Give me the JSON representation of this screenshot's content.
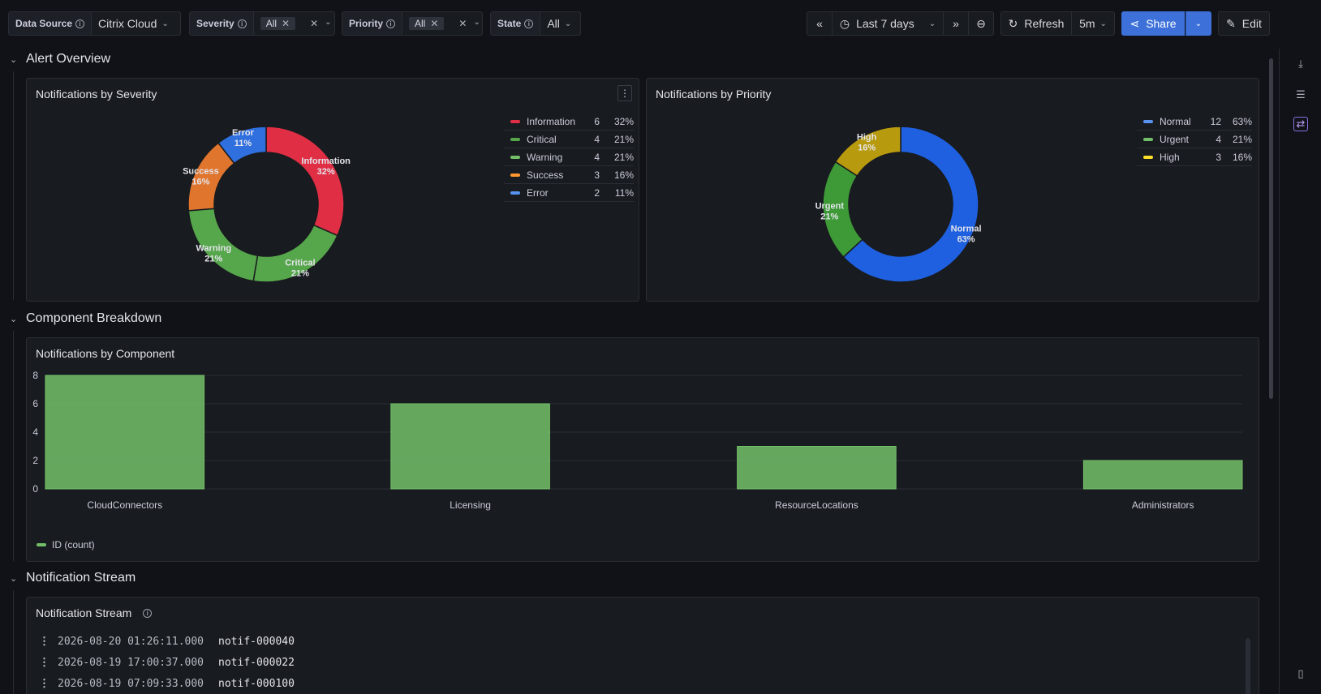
{
  "toolbar": {
    "data_source": {
      "label": "Data Source",
      "value": "Citrix Cloud"
    },
    "severity": {
      "label": "Severity",
      "chip": "All"
    },
    "priority": {
      "label": "Priority",
      "chip": "All"
    },
    "state": {
      "label": "State",
      "value": "All"
    },
    "time_range": "Last 7 days",
    "refresh_label": "Refresh",
    "refresh_interval": "5m",
    "share_label": "Share",
    "edit_label": "Edit"
  },
  "rows": [
    {
      "title": "Alert Overview"
    },
    {
      "title": "Component Breakdown"
    },
    {
      "title": "Notification Stream"
    }
  ],
  "severity_panel": {
    "title": "Notifications by Severity",
    "legend": [
      {
        "name": "Information",
        "value": "6",
        "pct": "32%",
        "color": "#e02f44"
      },
      {
        "name": "Critical",
        "value": "4",
        "pct": "21%",
        "color": "#56a64b"
      },
      {
        "name": "Warning",
        "value": "4",
        "pct": "21%",
        "color": "#73bf69"
      },
      {
        "name": "Success",
        "value": "3",
        "pct": "16%",
        "color": "#ff9830"
      },
      {
        "name": "Error",
        "value": "2",
        "pct": "11%",
        "color": "#5794f2"
      }
    ],
    "slices": [
      {
        "name": "Information",
        "pct": "32%",
        "value": 6,
        "color": "#e02f44"
      },
      {
        "name": "Critical",
        "pct": "21%",
        "value": 4,
        "color": "#56a64b"
      },
      {
        "name": "Warning",
        "pct": "21%",
        "value": 4,
        "color": "#56a64b"
      },
      {
        "name": "Success",
        "pct": "16%",
        "value": 3,
        "color": "#e0752d"
      },
      {
        "name": "Error",
        "pct": "11%",
        "value": 2,
        "color": "#2f6fde"
      }
    ]
  },
  "priority_panel": {
    "title": "Notifications by Priority",
    "legend": [
      {
        "name": "Normal",
        "value": "12",
        "pct": "63%",
        "color": "#5794f2"
      },
      {
        "name": "Urgent",
        "value": "4",
        "pct": "21%",
        "color": "#73bf69"
      },
      {
        "name": "High",
        "value": "3",
        "pct": "16%",
        "color": "#fade2a"
      }
    ],
    "slices": [
      {
        "name": "Normal",
        "pct": "63%",
        "value": 12,
        "color": "#1f60e0"
      },
      {
        "name": "Urgent",
        "pct": "21%",
        "value": 4,
        "color": "#3d9a37"
      },
      {
        "name": "High",
        "pct": "16%",
        "value": 3,
        "color": "#b89a0e"
      }
    ]
  },
  "component_panel": {
    "title": "Notifications by Component",
    "legend_label": "ID (count)"
  },
  "chart_data": {
    "type": "bar",
    "categories": [
      "CloudConnectors",
      "Licensing",
      "ResourceLocations",
      "Administrators"
    ],
    "series": [
      {
        "name": "ID (count)",
        "values": [
          8,
          6,
          3,
          2
        ]
      }
    ],
    "yticks": [
      0,
      2,
      4,
      6,
      8
    ],
    "ylim": [
      0,
      8
    ],
    "color": "#73bf69"
  },
  "stream_panel": {
    "title": "Notification Stream",
    "lines": [
      {
        "ts": "2026-08-20 01:26:11.000",
        "id": "notif-000040"
      },
      {
        "ts": "2026-08-19 17:00:37.000",
        "id": "notif-000022"
      },
      {
        "ts": "2026-08-19 07:09:33.000",
        "id": "notif-000100"
      }
    ]
  }
}
